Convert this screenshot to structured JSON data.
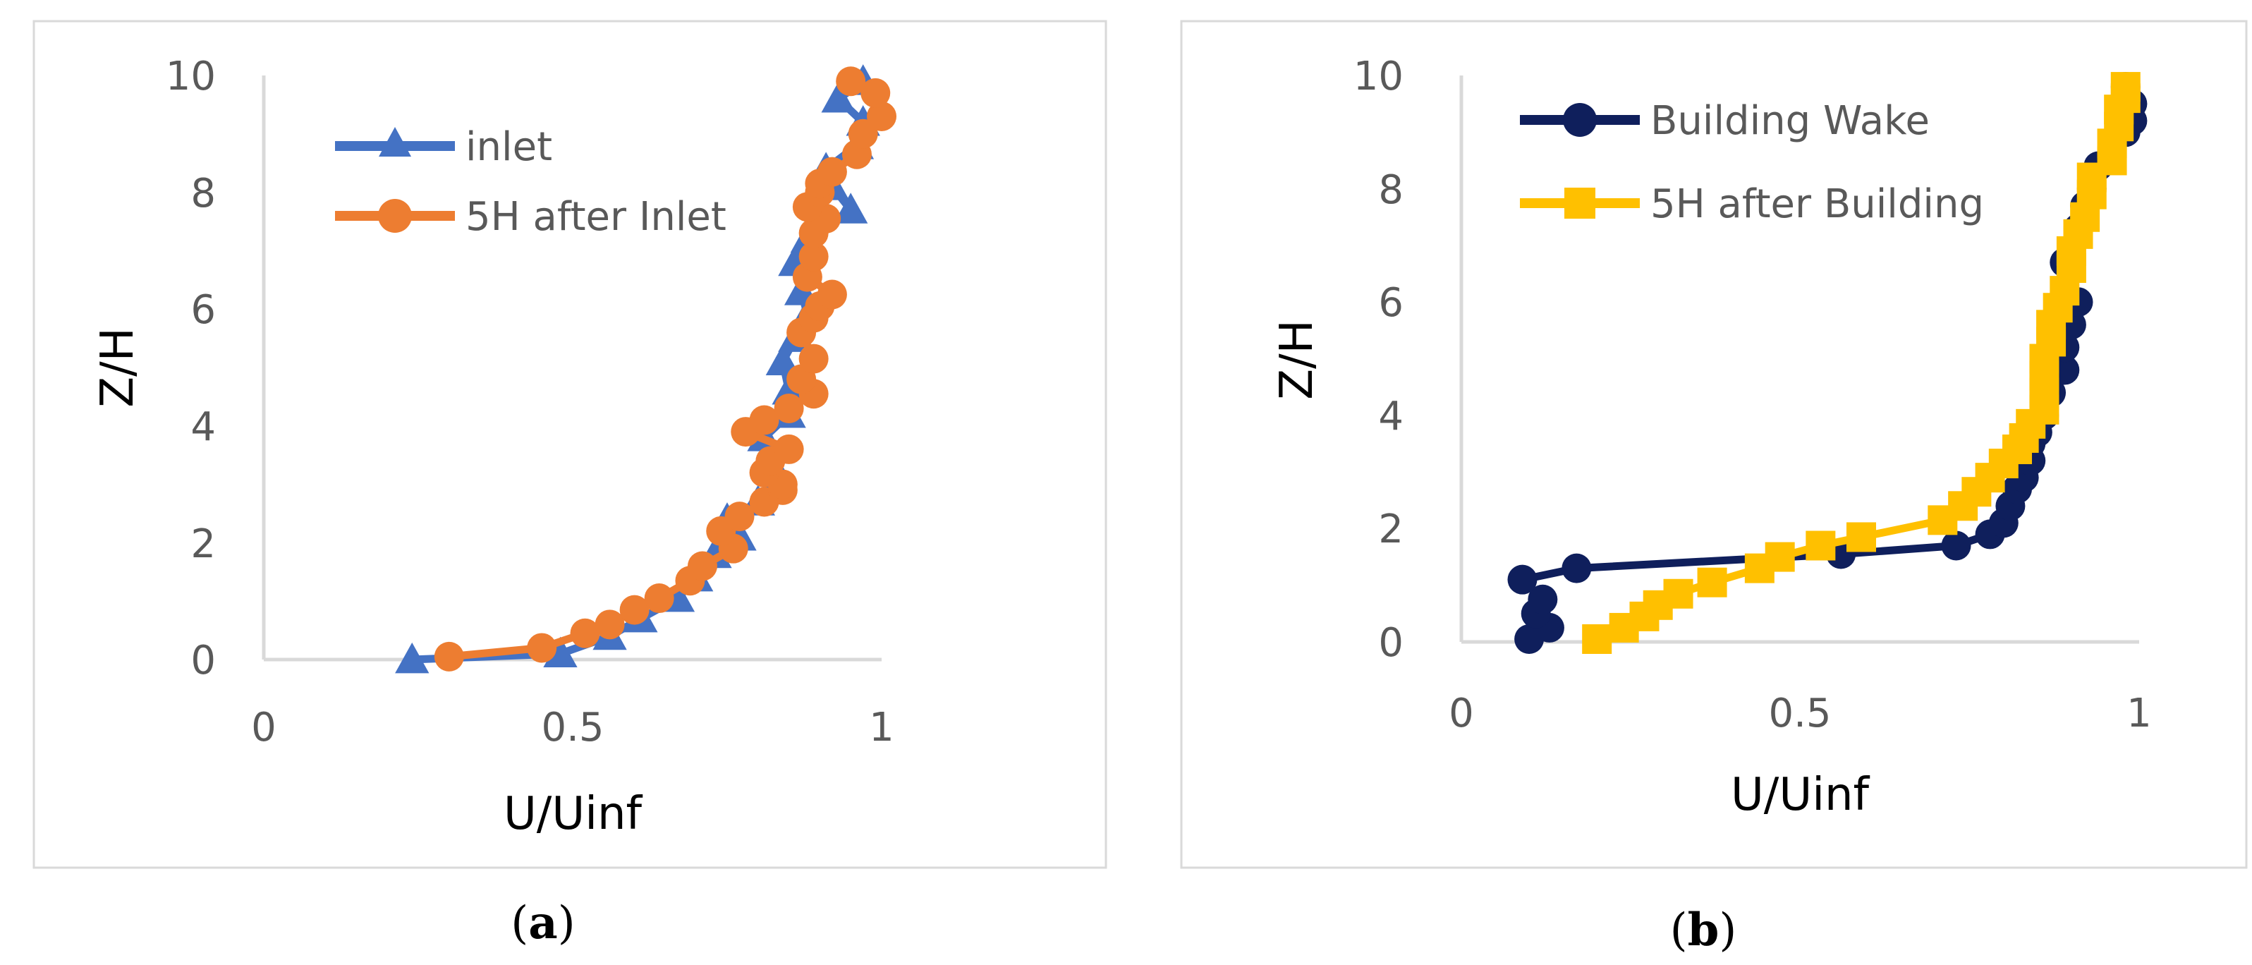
{
  "chart_data": [
    {
      "type": "line",
      "caption": "a",
      "xlabel": "U/Uinf",
      "ylabel": "Z/H",
      "xlim": [
        0,
        1
      ],
      "ylim": [
        0,
        10
      ],
      "xticks": [
        "0",
        "0.5",
        "1"
      ],
      "yticks": [
        "0",
        "2",
        "4",
        "6",
        "8",
        "10"
      ],
      "grid": false,
      "legend_position": "top-left",
      "series": [
        {
          "name": "inlet",
          "color": "#4472C4",
          "marker": "triangle",
          "points": [
            [
              0.24,
              0.0
            ],
            [
              0.48,
              0.1
            ],
            [
              0.56,
              0.4
            ],
            [
              0.61,
              0.7
            ],
            [
              0.67,
              1.05
            ],
            [
              0.7,
              1.4
            ],
            [
              0.73,
              1.8
            ],
            [
              0.77,
              2.1
            ],
            [
              0.75,
              2.4
            ],
            [
              0.8,
              2.7
            ],
            [
              0.83,
              3.1
            ],
            [
              0.82,
              3.4
            ],
            [
              0.81,
              3.8
            ],
            [
              0.85,
              4.2
            ],
            [
              0.85,
              4.6
            ],
            [
              0.84,
              5.1
            ],
            [
              0.86,
              5.5
            ],
            [
              0.88,
              5.9
            ],
            [
              0.87,
              6.3
            ],
            [
              0.86,
              6.8
            ],
            [
              0.88,
              7.2
            ],
            [
              0.95,
              7.7
            ],
            [
              0.92,
              8.1
            ],
            [
              0.91,
              8.4
            ],
            [
              0.96,
              8.8
            ],
            [
              0.97,
              9.2
            ],
            [
              0.93,
              9.6
            ],
            [
              0.97,
              9.9
            ]
          ]
        },
        {
          "name": "5H after Inlet",
          "color": "#ED7D31",
          "marker": "circle",
          "points": [
            [
              0.3,
              0.05
            ],
            [
              0.45,
              0.2
            ],
            [
              0.52,
              0.45
            ],
            [
              0.56,
              0.6
            ],
            [
              0.6,
              0.85
            ],
            [
              0.64,
              1.05
            ],
            [
              0.69,
              1.35
            ],
            [
              0.71,
              1.6
            ],
            [
              0.76,
              1.9
            ],
            [
              0.74,
              2.2
            ],
            [
              0.77,
              2.45
            ],
            [
              0.81,
              2.7
            ],
            [
              0.84,
              2.9
            ],
            [
              0.84,
              3.0
            ],
            [
              0.81,
              3.2
            ],
            [
              0.82,
              3.4
            ],
            [
              0.85,
              3.6
            ],
            [
              0.78,
              3.9
            ],
            [
              0.81,
              4.1
            ],
            [
              0.85,
              4.3
            ],
            [
              0.89,
              4.55
            ],
            [
              0.87,
              4.8
            ],
            [
              0.89,
              5.15
            ],
            [
              0.87,
              5.6
            ],
            [
              0.89,
              5.85
            ],
            [
              0.9,
              6.05
            ],
            [
              0.92,
              6.25
            ],
            [
              0.88,
              6.55
            ],
            [
              0.89,
              6.9
            ],
            [
              0.89,
              7.3
            ],
            [
              0.91,
              7.55
            ],
            [
              0.88,
              7.75
            ],
            [
              0.9,
              8.0
            ],
            [
              0.9,
              8.15
            ],
            [
              0.92,
              8.35
            ],
            [
              0.96,
              8.65
            ],
            [
              0.97,
              9.0
            ],
            [
              1.0,
              9.3
            ],
            [
              0.99,
              9.7
            ],
            [
              0.95,
              9.9
            ]
          ]
        }
      ]
    },
    {
      "type": "line",
      "caption": "b",
      "xlabel": "U/Uinf",
      "ylabel": "Z/H",
      "xlim": [
        0,
        1
      ],
      "ylim": [
        0,
        10
      ],
      "xticks": [
        "0",
        "0.5",
        "1"
      ],
      "yticks": [
        "0",
        "2",
        "4",
        "6",
        "8",
        "10"
      ],
      "grid": false,
      "legend_position": "top-left",
      "series": [
        {
          "name": "Building Wake",
          "color": "#0F1F5C",
          "marker": "circle",
          "points": [
            [
              0.1,
              0.05
            ],
            [
              0.13,
              0.25
            ],
            [
              0.11,
              0.5
            ],
            [
              0.12,
              0.75
            ],
            [
              0.09,
              1.1
            ],
            [
              0.17,
              1.3
            ],
            [
              0.56,
              1.55
            ],
            [
              0.73,
              1.7
            ],
            [
              0.78,
              1.9
            ],
            [
              0.8,
              2.1
            ],
            [
              0.81,
              2.4
            ],
            [
              0.82,
              2.7
            ],
            [
              0.83,
              2.9
            ],
            [
              0.84,
              3.2
            ],
            [
              0.84,
              3.5
            ],
            [
              0.85,
              3.7
            ],
            [
              0.86,
              4.0
            ],
            [
              0.87,
              4.4
            ],
            [
              0.89,
              4.8
            ],
            [
              0.89,
              5.2
            ],
            [
              0.9,
              5.6
            ],
            [
              0.91,
              6.0
            ],
            [
              0.89,
              6.7
            ],
            [
              0.91,
              7.3
            ],
            [
              0.92,
              7.7
            ],
            [
              0.93,
              8.0
            ],
            [
              0.94,
              8.4
            ],
            [
              0.96,
              8.7
            ],
            [
              0.98,
              9.0
            ],
            [
              0.99,
              9.2
            ],
            [
              0.99,
              9.5
            ],
            [
              0.98,
              9.8
            ]
          ]
        },
        {
          "name": "5H after Building",
          "color": "#FFC000",
          "marker": "square",
          "points": [
            [
              0.2,
              0.05
            ],
            [
              0.24,
              0.25
            ],
            [
              0.27,
              0.45
            ],
            [
              0.29,
              0.65
            ],
            [
              0.32,
              0.85
            ],
            [
              0.37,
              1.05
            ],
            [
              0.44,
              1.3
            ],
            [
              0.47,
              1.5
            ],
            [
              0.53,
              1.7
            ],
            [
              0.59,
              1.85
            ],
            [
              0.71,
              2.15
            ],
            [
              0.74,
              2.4
            ],
            [
              0.76,
              2.65
            ],
            [
              0.78,
              2.9
            ],
            [
              0.8,
              3.15
            ],
            [
              0.82,
              3.4
            ],
            [
              0.83,
              3.6
            ],
            [
              0.84,
              3.85
            ],
            [
              0.86,
              4.1
            ],
            [
              0.86,
              4.4
            ],
            [
              0.86,
              4.7
            ],
            [
              0.86,
              5.0
            ],
            [
              0.87,
              5.3
            ],
            [
              0.87,
              5.6
            ],
            [
              0.88,
              5.9
            ],
            [
              0.89,
              6.2
            ],
            [
              0.9,
              6.6
            ],
            [
              0.9,
              6.9
            ],
            [
              0.91,
              7.2
            ],
            [
              0.92,
              7.5
            ],
            [
              0.93,
              7.9
            ],
            [
              0.93,
              8.2
            ],
            [
              0.96,
              8.5
            ],
            [
              0.96,
              8.8
            ],
            [
              0.97,
              9.1
            ],
            [
              0.97,
              9.4
            ],
            [
              0.98,
              9.6
            ],
            [
              0.98,
              9.8
            ]
          ]
        }
      ]
    }
  ]
}
